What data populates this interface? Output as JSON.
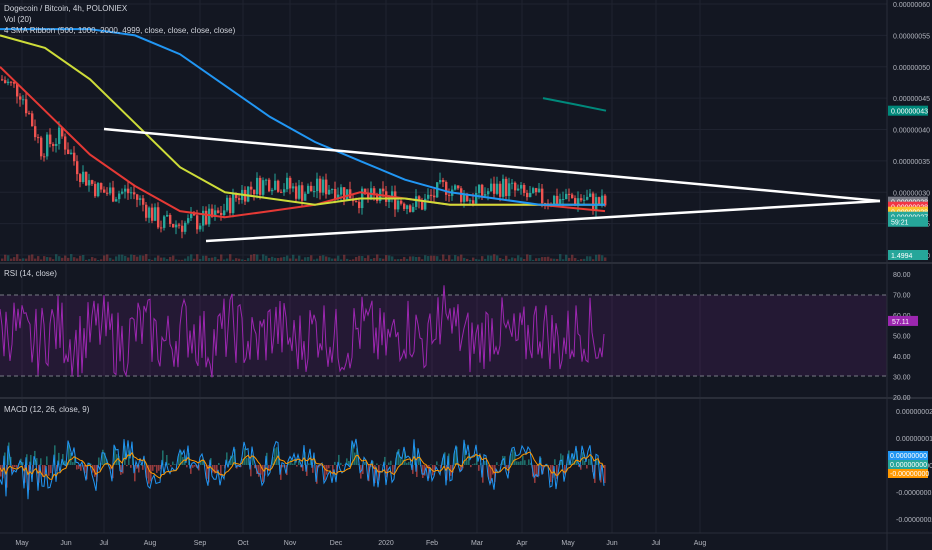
{
  "header": {
    "symbol_line": "Dogecoin / Bitcoin, 4h, POLONIEX",
    "vol_label": "Vol (20)",
    "sma_label": "4 SMA Ribbon (500, 1000, 2000, 4999, close, close, close, close)"
  },
  "rsi_label": "RSI (14, close)",
  "macd_label": "MACD (12, 26, close, 9)",
  "price_axis": {
    "ticks": [
      "0.00000060",
      "0.00000055",
      "0.00000050",
      "0.00000045",
      "0.00000040",
      "0.00000035",
      "0.00000030",
      "0.00000025",
      "0.00000020"
    ]
  },
  "price_badges": [
    {
      "text": "0.00000043",
      "color": "#00897b",
      "y": 4.3e-07
    },
    {
      "text": "0.00000028",
      "color": "#787b86",
      "y": 2.85e-07
    },
    {
      "text": "0.00000028",
      "color": "#f23645",
      "y": 2.77e-07
    },
    {
      "text": "0.00000028",
      "color": "#fbc02d",
      "y": 2.69e-07
    },
    {
      "text": "0.00000027",
      "color": "#26a69a",
      "y": 2.61e-07
    },
    {
      "text": "59:21",
      "color": "#26a69a",
      "y": 2.53e-07
    },
    {
      "text": "1.4994",
      "color": "#26a69a",
      "y": 2e-07
    }
  ],
  "rsi_axis": {
    "ticks": [
      "80.00",
      "70.00",
      "60.00",
      "50.00",
      "40.00",
      "30.00",
      "20.00"
    ],
    "badge": "57.11"
  },
  "macd_axis": {
    "ticks": [
      "0.00000002",
      "0.00000001",
      "0.00000000",
      "-0.00000001",
      "-0.00000002"
    ],
    "badges": [
      "0.00000000",
      "0.00000000",
      "-0.00000000"
    ]
  },
  "time_axis": {
    "labels": [
      "May",
      "Jun",
      "Jul",
      "Aug",
      "Sep",
      "Oct",
      "Nov",
      "Dec",
      "2020",
      "Feb",
      "Mar",
      "Apr",
      "May",
      "Jun",
      "Jul",
      "Aug"
    ]
  },
  "colors": {
    "background": "#131722",
    "grid": "#1f2330",
    "up": "#26a69a",
    "down": "#ef5350",
    "sma500": "#e53935",
    "sma1000": "#cddc39",
    "sma2000": "#2196f3",
    "sma4999": "#00897b",
    "rsi": "#9c27b0",
    "macd": "#2196f3",
    "signal": "#ff9800"
  },
  "chart_data": {
    "type": "line",
    "x_range": [
      "2019-05",
      "2020-08"
    ],
    "price_ylim": [
      2e-07,
      6e-07
    ],
    "series": [
      {
        "name": "SMA 500",
        "values": [
          5e-07,
          4.3e-07,
          3.6e-07,
          3.1e-07,
          2.7e-07,
          2.6e-07,
          2.7e-07,
          2.8e-07,
          3e-07,
          2.9e-07,
          2.8e-07,
          2.8e-07,
          2.8e-07,
          2.7e-07
        ]
      },
      {
        "name": "SMA 1000",
        "values": [
          5.5e-07,
          5.3e-07,
          4.8e-07,
          4.1e-07,
          3.4e-07,
          3e-07,
          2.9e-07,
          2.8e-07,
          2.9e-07,
          2.9e-07,
          2.8e-07,
          2.8e-07,
          2.8e-07,
          2.8e-07
        ]
      },
      {
        "name": "SMA 2000",
        "values": [
          5.6e-07,
          5.6e-07,
          5.6e-07,
          5.5e-07,
          5.2e-07,
          4.7e-07,
          4.2e-07,
          3.8e-07,
          3.5e-07,
          3.2e-07,
          3e-07,
          2.9e-07,
          2.8e-07,
          2.8e-07
        ]
      },
      {
        "name": "SMA 4999",
        "values": [
          4.5e-07,
          4.4e-07,
          4.3e-07
        ]
      }
    ],
    "rsi_ylim": [
      20,
      80
    ],
    "macd_ylim": [
      -2e-08,
      2e-08
    ]
  }
}
